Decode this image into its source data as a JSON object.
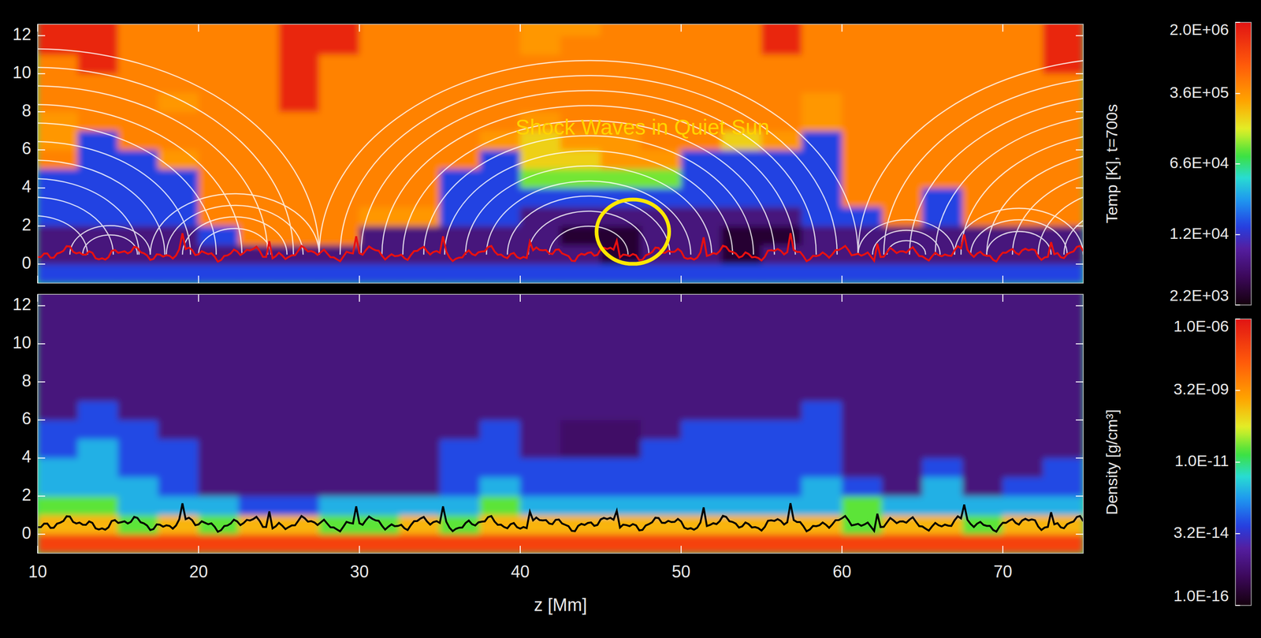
{
  "chart_data": [
    {
      "type": "heatmap",
      "annotations": [
        {
          "text": "Shock Waves in Quiet Sun"
        }
      ],
      "x": [
        11.25,
        13.75,
        16.25,
        18.75,
        21.25,
        23.75,
        26.25,
        28.75,
        31.25,
        33.75,
        36.25,
        38.75,
        41.25,
        43.75,
        46.25,
        48.75,
        51.25,
        53.75,
        56.25,
        58.75,
        61.25,
        63.75,
        66.25,
        68.75,
        71.25,
        73.75
      ],
      "y": [
        -0.5,
        0.5,
        1.5,
        2.5,
        3.5,
        4.5,
        5.5,
        6.5,
        7.5,
        8.5,
        9.5,
        10.5,
        11.5,
        12.5
      ],
      "values": [
        [
          15000,
          15000,
          15000,
          15000,
          15000,
          15000,
          15000,
          15000,
          15000,
          15000,
          15000,
          15000,
          15000,
          15000,
          15000,
          15000,
          15000,
          15000,
          15000,
          15000,
          15000,
          15000,
          15000,
          15000,
          15000,
          15000
        ],
        [
          6000,
          6000,
          6000,
          6000,
          6000,
          6000,
          6000,
          6000,
          6000,
          6000,
          6000,
          6000,
          6000,
          6000,
          3000,
          6000,
          6000,
          3000,
          6000,
          6000,
          6000,
          6000,
          6000,
          6000,
          6000,
          6000
        ],
        [
          6000,
          6000,
          6000,
          6000,
          15000,
          450000,
          450000,
          450000,
          6000,
          6000,
          6000,
          6000,
          6000,
          3000,
          3000,
          6000,
          6000,
          3000,
          3000,
          6000,
          6000,
          6000,
          6000,
          6000,
          6000,
          6000
        ],
        [
          15000,
          15000,
          15000,
          15000,
          450000,
          450000,
          450000,
          450000,
          350000,
          350000,
          15000,
          15000,
          6000,
          6000,
          6000,
          6000,
          6000,
          6000,
          6000,
          15000,
          15000,
          450000,
          15000,
          450000,
          450000,
          450000
        ],
        [
          15000,
          15000,
          15000,
          15000,
          450000,
          450000,
          450000,
          450000,
          450000,
          450000,
          15000,
          15000,
          15000,
          15000,
          15000,
          15000,
          15000,
          15000,
          15000,
          15000,
          450000,
          450000,
          15000,
          450000,
          450000,
          450000
        ],
        [
          15000,
          15000,
          15000,
          15000,
          450000,
          450000,
          450000,
          450000,
          450000,
          450000,
          15000,
          15000,
          100000,
          100000,
          100000,
          100000,
          15000,
          15000,
          15000,
          15000,
          450000,
          450000,
          450000,
          450000,
          450000,
          450000
        ],
        [
          450000,
          15000,
          15000,
          350000,
          450000,
          450000,
          450000,
          450000,
          450000,
          450000,
          450000,
          15000,
          200000,
          200000,
          350000,
          350000,
          15000,
          15000,
          15000,
          15000,
          450000,
          450000,
          450000,
          450000,
          450000,
          450000
        ],
        [
          350000,
          15000,
          450000,
          450000,
          450000,
          450000,
          450000,
          450000,
          450000,
          450000,
          450000,
          350000,
          200000,
          350000,
          350000,
          450000,
          450000,
          200000,
          350000,
          15000,
          450000,
          450000,
          450000,
          450000,
          450000,
          450000
        ],
        [
          350000,
          450000,
          450000,
          450000,
          450000,
          450000,
          450000,
          450000,
          450000,
          450000,
          450000,
          450000,
          350000,
          450000,
          450000,
          450000,
          450000,
          450000,
          450000,
          350000,
          450000,
          450000,
          450000,
          450000,
          450000,
          450000
        ],
        [
          450000,
          450000,
          450000,
          350000,
          450000,
          450000,
          1500000,
          450000,
          450000,
          450000,
          450000,
          450000,
          450000,
          450000,
          450000,
          450000,
          450000,
          450000,
          450000,
          350000,
          450000,
          450000,
          450000,
          450000,
          450000,
          450000
        ],
        [
          450000,
          450000,
          450000,
          450000,
          450000,
          450000,
          1500000,
          450000,
          450000,
          450000,
          450000,
          450000,
          450000,
          450000,
          450000,
          450000,
          450000,
          450000,
          450000,
          450000,
          450000,
          450000,
          450000,
          450000,
          450000,
          450000
        ],
        [
          450000,
          1500000,
          450000,
          450000,
          450000,
          450000,
          1500000,
          450000,
          450000,
          450000,
          450000,
          450000,
          450000,
          450000,
          450000,
          450000,
          450000,
          450000,
          450000,
          450000,
          450000,
          450000,
          450000,
          450000,
          450000,
          1500000
        ],
        [
          1500000,
          1500000,
          450000,
          450000,
          450000,
          450000,
          1500000,
          1500000,
          450000,
          450000,
          450000,
          450000,
          350000,
          450000,
          450000,
          450000,
          450000,
          450000,
          1500000,
          450000,
          450000,
          450000,
          450000,
          450000,
          450000,
          1500000
        ],
        [
          1500000,
          1500000,
          450000,
          450000,
          450000,
          450000,
          1500000,
          1500000,
          450000,
          450000,
          450000,
          450000,
          350000,
          350000,
          450000,
          450000,
          450000,
          450000,
          1500000,
          450000,
          450000,
          450000,
          450000,
          450000,
          450000,
          1500000
        ]
      ],
      "xlim": [
        10,
        75
      ],
      "ylim": [
        -1,
        12.6
      ],
      "xticks": [
        10,
        20,
        30,
        40,
        50,
        60,
        70
      ],
      "yticks": [
        0,
        2,
        4,
        6,
        8,
        10,
        12
      ],
      "tick_labels": "y",
      "colorbar": {
        "label": "Temp [K], t=700s",
        "log": true,
        "range": [
          2200,
          2000000
        ],
        "ticks": [
          {
            "value": 2200,
            "label": "2.2E+03"
          },
          {
            "value": 12000,
            "label": "1.2E+04"
          },
          {
            "value": 66000,
            "label": "6.6E+04"
          },
          {
            "value": 360000,
            "label": "3.6E+05"
          },
          {
            "value": 2000000,
            "label": "2.0E+06"
          }
        ]
      }
    },
    {
      "type": "heatmap",
      "xlabel": "z [Mm]",
      "x": [
        11.25,
        13.75,
        16.25,
        18.75,
        21.25,
        23.75,
        26.25,
        28.75,
        31.25,
        33.75,
        36.25,
        38.75,
        41.25,
        43.75,
        46.25,
        48.75,
        51.25,
        53.75,
        56.25,
        58.75,
        61.25,
        63.75,
        66.25,
        68.75,
        71.25,
        73.75
      ],
      "y": [
        -0.5,
        0.5,
        1.5,
        2.5,
        3.5,
        4.5,
        5.5,
        6.5,
        7.5,
        8.5,
        9.5,
        10.5,
        11.5,
        12.5
      ],
      "values": [
        [
          1e-07,
          1e-07,
          1e-07,
          1e-07,
          1e-07,
          1e-07,
          1e-07,
          1e-07,
          1e-07,
          1e-07,
          1e-07,
          1e-07,
          1e-07,
          1e-07,
          1e-07,
          1e-07,
          1e-07,
          1e-07,
          1e-07,
          1e-07,
          1e-07,
          1e-07,
          1e-07,
          1e-07,
          1e-07,
          1e-07
        ],
        [
          1e-09,
          1e-09,
          3e-11,
          1e-09,
          3e-11,
          1e-09,
          1e-09,
          3e-11,
          3e-11,
          1e-09,
          3e-11,
          1e-09,
          1e-09,
          1e-09,
          1e-09,
          1e-09,
          1e-09,
          1e-09,
          1e-09,
          1e-09,
          3e-11,
          1e-09,
          1e-09,
          3e-11,
          1e-09,
          1e-09
        ],
        [
          3e-11,
          3e-11,
          1e-12,
          1e-12,
          1e-12,
          8e-14,
          8e-14,
          1e-12,
          1e-12,
          1e-12,
          1e-12,
          3e-11,
          1e-12,
          1e-12,
          1e-12,
          1e-12,
          1e-12,
          1e-12,
          1e-12,
          1e-12,
          3e-11,
          1e-12,
          1e-12,
          1e-12,
          1e-12,
          1e-12
        ],
        [
          1e-12,
          1e-12,
          1e-12,
          8e-14,
          3e-15,
          3e-15,
          3e-15,
          3e-15,
          3e-15,
          3e-15,
          8e-14,
          1e-12,
          8e-14,
          8e-14,
          8e-14,
          8e-14,
          8e-14,
          8e-14,
          8e-14,
          1e-12,
          8e-14,
          3e-15,
          1e-12,
          3e-15,
          8e-14,
          8e-14
        ],
        [
          1e-12,
          1e-12,
          8e-14,
          8e-14,
          3e-15,
          3e-15,
          3e-15,
          3e-15,
          3e-15,
          3e-15,
          8e-14,
          8e-14,
          8e-14,
          8e-14,
          8e-14,
          8e-14,
          8e-14,
          8e-14,
          8e-14,
          8e-14,
          3e-15,
          3e-15,
          8e-14,
          3e-15,
          3e-15,
          8e-14
        ],
        [
          8e-14,
          1e-12,
          8e-14,
          8e-14,
          3e-15,
          3e-15,
          3e-15,
          3e-15,
          3e-15,
          3e-15,
          8e-14,
          8e-14,
          3e-15,
          1.5e-15,
          1.5e-15,
          8e-14,
          8e-14,
          8e-14,
          8e-14,
          8e-14,
          3e-15,
          3e-15,
          3e-15,
          3e-15,
          3e-15,
          3e-15
        ],
        [
          8e-14,
          8e-14,
          8e-14,
          3e-15,
          3e-15,
          3e-15,
          3e-15,
          3e-15,
          3e-15,
          3e-15,
          3e-15,
          8e-14,
          3e-15,
          1.5e-15,
          1.5e-15,
          3e-15,
          8e-14,
          8e-14,
          8e-14,
          8e-14,
          3e-15,
          3e-15,
          3e-15,
          3e-15,
          3e-15,
          3e-15
        ],
        [
          3e-15,
          8e-14,
          3e-15,
          3e-15,
          3e-15,
          3e-15,
          3e-15,
          3e-15,
          3e-15,
          3e-15,
          3e-15,
          3e-15,
          3e-15,
          3e-15,
          3e-15,
          3e-15,
          3e-15,
          3e-15,
          3e-15,
          8e-14,
          3e-15,
          3e-15,
          3e-15,
          3e-15,
          3e-15,
          3e-15
        ],
        [
          3e-15,
          3e-15,
          3e-15,
          3e-15,
          3e-15,
          3e-15,
          3e-15,
          3e-15,
          3e-15,
          3e-15,
          3e-15,
          3e-15,
          3e-15,
          3e-15,
          3e-15,
          3e-15,
          3e-15,
          3e-15,
          3e-15,
          3e-15,
          3e-15,
          3e-15,
          3e-15,
          3e-15,
          3e-15,
          3e-15
        ],
        [
          3e-15,
          3e-15,
          3e-15,
          3e-15,
          3e-15,
          3e-15,
          3e-15,
          3e-15,
          3e-15,
          3e-15,
          3e-15,
          3e-15,
          3e-15,
          3e-15,
          3e-15,
          3e-15,
          3e-15,
          3e-15,
          3e-15,
          3e-15,
          3e-15,
          3e-15,
          3e-15,
          3e-15,
          3e-15,
          3e-15
        ],
        [
          3e-15,
          3e-15,
          3e-15,
          3e-15,
          3e-15,
          3e-15,
          3e-15,
          3e-15,
          3e-15,
          3e-15,
          3e-15,
          3e-15,
          3e-15,
          3e-15,
          3e-15,
          3e-15,
          3e-15,
          3e-15,
          3e-15,
          3e-15,
          3e-15,
          3e-15,
          3e-15,
          3e-15,
          3e-15,
          3e-15
        ],
        [
          3e-15,
          3e-15,
          3e-15,
          3e-15,
          3e-15,
          3e-15,
          3e-15,
          3e-15,
          3e-15,
          3e-15,
          3e-15,
          3e-15,
          3e-15,
          3e-15,
          3e-15,
          3e-15,
          3e-15,
          3e-15,
          3e-15,
          3e-15,
          3e-15,
          3e-15,
          3e-15,
          3e-15,
          3e-15,
          3e-15
        ],
        [
          3e-15,
          3e-15,
          3e-15,
          3e-15,
          3e-15,
          3e-15,
          3e-15,
          3e-15,
          3e-15,
          3e-15,
          3e-15,
          3e-15,
          3e-15,
          3e-15,
          3e-15,
          3e-15,
          3e-15,
          3e-15,
          3e-15,
          3e-15,
          3e-15,
          3e-15,
          3e-15,
          3e-15,
          3e-15,
          3e-15
        ],
        [
          3e-15,
          3e-15,
          3e-15,
          3e-15,
          3e-15,
          3e-15,
          3e-15,
          3e-15,
          3e-15,
          3e-15,
          3e-15,
          3e-15,
          3e-15,
          3e-15,
          3e-15,
          3e-15,
          3e-15,
          3e-15,
          3e-15,
          3e-15,
          3e-15,
          3e-15,
          3e-15,
          3e-15,
          3e-15,
          3e-15
        ]
      ],
      "xlim": [
        10,
        75
      ],
      "ylim": [
        -1,
        12.6
      ],
      "xticks": [
        10,
        20,
        30,
        40,
        50,
        60,
        70
      ],
      "yticks": [
        0,
        2,
        4,
        6,
        8,
        10,
        12
      ],
      "colorbar": {
        "label": "Density [g/cm³]",
        "log": true,
        "range": [
          1e-16,
          1e-06
        ],
        "ticks": [
          {
            "value": 1e-16,
            "label": "1.0E-16"
          },
          {
            "value": 3.2e-14,
            "label": "3.2E-14"
          },
          {
            "value": 1e-11,
            "label": "1.0E-11"
          },
          {
            "value": 3.2e-09,
            "label": "3.2E-09"
          },
          {
            "value": 1e-06,
            "label": "1.0E-06"
          }
        ]
      }
    }
  ]
}
